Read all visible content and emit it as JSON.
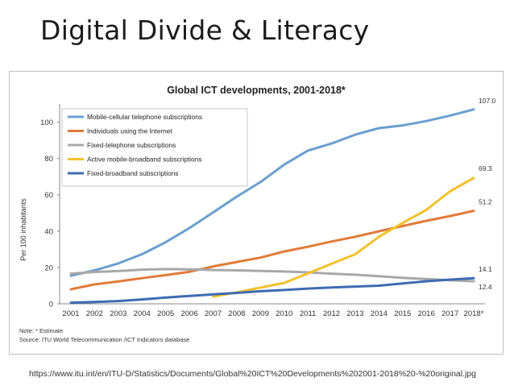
{
  "slide": {
    "title": "Digital Divide & Literacy",
    "source_url": "https://www.itu.int/en/ITU-D/Statistics/Documents/Global%20ICT%20Developments%202001-2018%20-%20original.jpg"
  },
  "chart_data": {
    "type": "line",
    "title": "Global ICT developments, 2001-2018*",
    "ylabel": "Per 100 inhabitants",
    "xlabel": "",
    "ylim": [
      0,
      110
    ],
    "yticks": [
      0,
      20,
      40,
      60,
      80,
      100
    ],
    "categories": [
      "2001",
      "2002",
      "2003",
      "2004",
      "2005",
      "2006",
      "2007",
      "2008",
      "2009",
      "2010",
      "2011",
      "2012",
      "2013",
      "2014",
      "2015",
      "2016",
      "2017",
      "2018*"
    ],
    "grid": false,
    "legend": "top-left",
    "series": [
      {
        "name": "Mobile-cellular telephone subscriptions",
        "color": "#6A9FCF",
        "values": [
          15.5,
          18.4,
          22.2,
          27.3,
          33.9,
          41.7,
          50.3,
          59.0,
          67.0,
          76.6,
          84.3,
          88.2,
          93.1,
          96.7,
          98.2,
          100.6,
          103.6,
          107.0
        ],
        "end_label": "107.0"
      },
      {
        "name": "Individuals using the Internet",
        "color": "#E07B39",
        "values": [
          8.0,
          10.7,
          12.3,
          14.1,
          15.8,
          17.6,
          20.6,
          23.0,
          25.4,
          28.8,
          31.4,
          34.3,
          36.9,
          39.9,
          42.8,
          45.7,
          48.3,
          51.2
        ],
        "end_label": "51.2"
      },
      {
        "name": "Fixed-telephone subscriptions",
        "color": "#A8A8A8",
        "values": [
          16.6,
          17.5,
          18.0,
          18.8,
          19.1,
          19.0,
          18.6,
          18.4,
          18.1,
          17.8,
          17.3,
          16.6,
          16.0,
          15.2,
          14.3,
          13.6,
          13.0,
          12.4
        ],
        "end_label": "12.4"
      },
      {
        "name": "Active mobile-broadband subscriptions",
        "color": "#F2C12E",
        "start_index": 6,
        "values": [
          null,
          null,
          null,
          null,
          null,
          null,
          4.0,
          6.3,
          8.9,
          11.5,
          16.7,
          22.1,
          27.3,
          36.9,
          44.5,
          51.7,
          61.9,
          69.3
        ],
        "end_label": "69.3"
      },
      {
        "name": "Fixed-broadband subscriptions",
        "color": "#3E6BB2",
        "values": [
          0.6,
          1.0,
          1.5,
          2.4,
          3.4,
          4.3,
          5.2,
          6.0,
          6.9,
          7.6,
          8.4,
          9.0,
          9.5,
          10.0,
          11.2,
          12.4,
          13.3,
          14.1
        ],
        "end_label": "14.1"
      }
    ],
    "note": "Note: * Estimate",
    "source": "Source:  ITU World Telecommunication /ICT Indicators database"
  }
}
